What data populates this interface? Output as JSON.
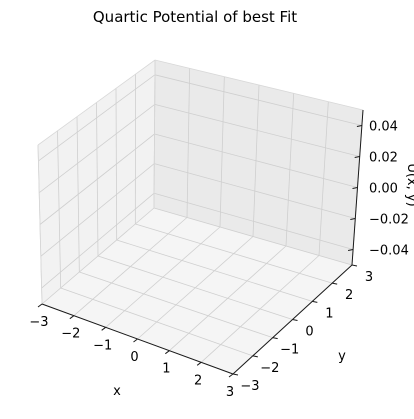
{
  "chart_data": {
    "type": "surface3d",
    "title": "Quartic Potential of best Fit",
    "xlabel": "x",
    "ylabel": "y",
    "zlabel": "U(x, y)",
    "x_ticks": [
      "−3",
      "−2",
      "−1",
      "0",
      "1",
      "2",
      "3"
    ],
    "y_ticks": [
      "−3",
      "−2",
      "−1",
      "0",
      "1",
      "2",
      "3"
    ],
    "z_ticks": [
      "−0.04",
      "−0.02",
      "0.00",
      "0.02",
      "0.04"
    ],
    "xlim": [
      -3,
      3
    ],
    "ylim": [
      -3,
      3
    ],
    "zlim": [
      -0.05,
      0.05
    ],
    "grid": true,
    "series": [],
    "colors": {
      "pane_left": "#f2f2f2",
      "pane_back": "#eaeaea",
      "pane_floor": "#f5f5f5",
      "grid": "#cfcfcf",
      "edge": "#1a1a1a"
    }
  }
}
